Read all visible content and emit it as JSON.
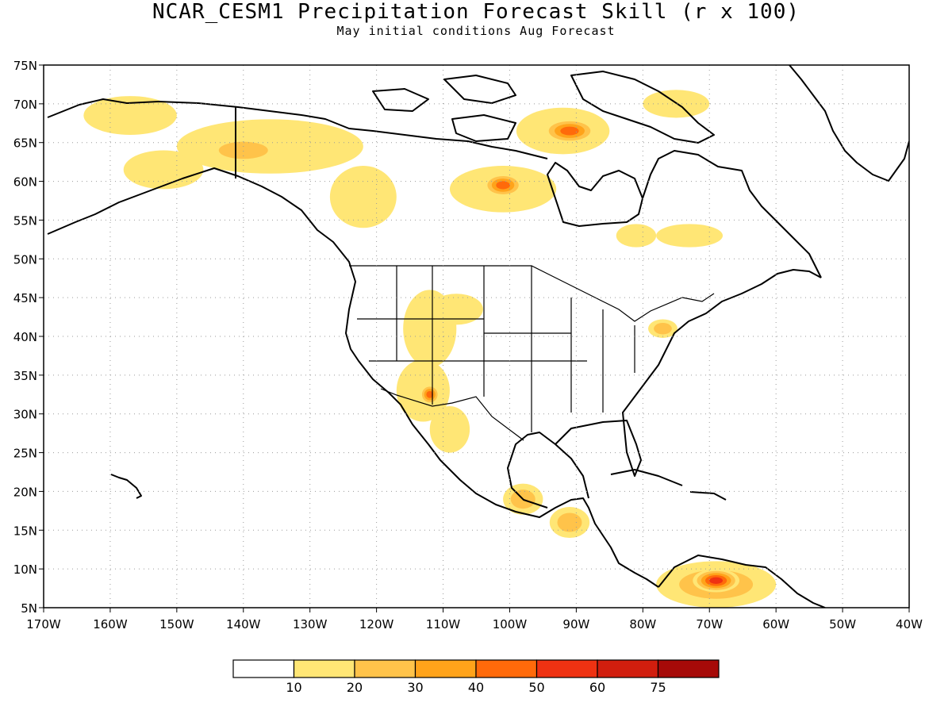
{
  "title": "NCAR_CESM1 Precipitation Forecast Skill (r x 100)",
  "subtitle": "May initial conditions  Aug Forecast",
  "map": {
    "type": "shaded map",
    "region": "North America",
    "lat_range": [
      5,
      75
    ],
    "lon_range": [
      -170,
      -40
    ],
    "grid": "dotted",
    "lat_labels": [
      "75N",
      "70N",
      "65N",
      "60N",
      "55N",
      "50N",
      "45N",
      "40N",
      "35N",
      "30N",
      "25N",
      "20N",
      "15N",
      "10N",
      "5N"
    ],
    "lon_labels": [
      "170W",
      "160W",
      "150W",
      "140W",
      "130W",
      "120W",
      "110W",
      "100W",
      "90W",
      "80W",
      "70W",
      "60W",
      "50W",
      "40W"
    ]
  },
  "colorbar": {
    "colors": [
      "#ffffff",
      "#ffe675",
      "#ffc34a",
      "#ffa31a",
      "#ff6a0a",
      "#ef3212",
      "#d11e0e",
      "#a60a08"
    ],
    "tick_labels": [
      "10",
      "20",
      "30",
      "40",
      "50",
      "60",
      "75"
    ]
  },
  "skill_regions": [
    {
      "name": "alaska-north",
      "level": 1,
      "lon": -157,
      "lat": 68.5,
      "rx": 7,
      "ry": 2.5
    },
    {
      "name": "alaska-west",
      "level": 1,
      "lon": -152,
      "lat": 61.5,
      "rx": 6,
      "ry": 2.5
    },
    {
      "name": "yukon-band",
      "level": 1,
      "lon": -136,
      "lat": 64.5,
      "rx": 14,
      "ry": 3.5
    },
    {
      "name": "yukon-core",
      "level": 2,
      "lon": -140,
      "lat": 64,
      "rx": 6,
      "ry": 1.8
    },
    {
      "name": "nw-territories",
      "level": 1,
      "lon": -122,
      "lat": 58,
      "rx": 5,
      "ry": 4
    },
    {
      "name": "hudson-west",
      "level": 1,
      "lon": -101,
      "lat": 59,
      "rx": 8,
      "ry": 3
    },
    {
      "name": "hudson-west-core",
      "level": 4,
      "lon": -101,
      "lat": 59.5,
      "rx": 3,
      "ry": 1.5
    },
    {
      "name": "baffin-band",
      "level": 1,
      "lon": -92,
      "lat": 66.5,
      "rx": 7,
      "ry": 3
    },
    {
      "name": "baffin-core",
      "level": 4,
      "lon": -91,
      "lat": 66.5,
      "rx": 4,
      "ry": 1.6
    },
    {
      "name": "greenland-west",
      "level": 1,
      "lon": -75,
      "lat": 70,
      "rx": 5,
      "ry": 1.8
    },
    {
      "name": "quebec-east",
      "level": 1,
      "lon": -73,
      "lat": 53,
      "rx": 5,
      "ry": 1.5
    },
    {
      "name": "ontario-north",
      "level": 1,
      "lon": -81,
      "lat": 53,
      "rx": 3,
      "ry": 1.5
    },
    {
      "name": "great-basin",
      "level": 1,
      "lon": -112,
      "lat": 41,
      "rx": 4,
      "ry": 5
    },
    {
      "name": "colorado-plateau",
      "level": 1,
      "lon": -108,
      "lat": 43.5,
      "rx": 4,
      "ry": 2
    },
    {
      "name": "arizona",
      "level": 1,
      "lon": -113,
      "lat": 33,
      "rx": 4,
      "ry": 4
    },
    {
      "name": "arizona-core",
      "level": 4,
      "lon": -112,
      "lat": 32.5,
      "rx": 1.5,
      "ry": 1.3
    },
    {
      "name": "northwest-mexico",
      "level": 1,
      "lon": -109,
      "lat": 28,
      "rx": 3,
      "ry": 3
    },
    {
      "name": "southern-mexico",
      "level": 2,
      "lon": -98,
      "lat": 19,
      "rx": 3,
      "ry": 2
    },
    {
      "name": "guatemala",
      "level": 2,
      "lon": -91,
      "lat": 16,
      "rx": 3,
      "ry": 2
    },
    {
      "name": "pennsylvania",
      "level": 2,
      "lon": -77,
      "lat": 41,
      "rx": 2.2,
      "ry": 1.2
    },
    {
      "name": "colombia-venezuela",
      "level": 2,
      "lon": -69,
      "lat": 8,
      "rx": 9,
      "ry": 3
    },
    {
      "name": "venezuela-core",
      "level": 5,
      "lon": -69,
      "lat": 8.5,
      "rx": 3.5,
      "ry": 1.5
    }
  ]
}
